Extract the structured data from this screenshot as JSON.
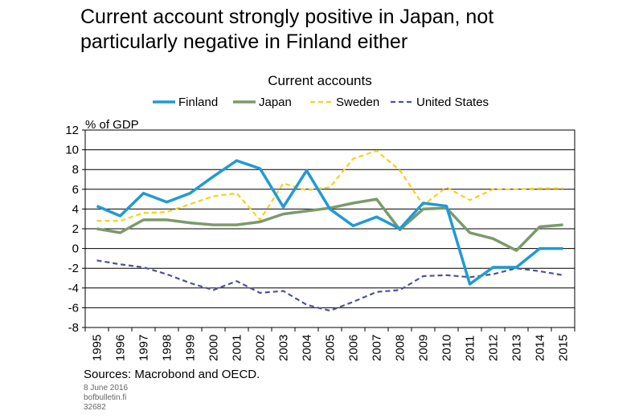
{
  "headline": {
    "line1": "Current account strongly positive in Japan, not",
    "line2": "particularly negative in Finland either"
  },
  "chart_data": {
    "type": "line",
    "title": "Current accounts",
    "ylabel": "% of GDP",
    "xlabel": "",
    "ylim": [
      -8,
      12
    ],
    "yticks": [
      12,
      10,
      8,
      6,
      4,
      2,
      0,
      -2,
      -4,
      -6,
      -8
    ],
    "ytick_labels": [
      "12",
      "10",
      "8",
      "6",
      "4",
      "2",
      "0",
      "-2",
      "-4",
      "-6",
      "-8"
    ],
    "grid": true,
    "legend_position": "top",
    "x": [
      "1995",
      "1996",
      "1997",
      "1998",
      "1999",
      "2000",
      "2001",
      "2002",
      "2003",
      "2004",
      "2005",
      "2006",
      "2007",
      "2008",
      "2009",
      "2010",
      "2011",
      "2012",
      "2013",
      "2014",
      "2015"
    ],
    "series": [
      {
        "name": "Finland",
        "color": "#1f9ad6",
        "style": "solid",
        "values": [
          4.3,
          3.3,
          5.6,
          4.7,
          5.6,
          7.3,
          8.9,
          8.1,
          4.2,
          7.9,
          4.0,
          2.3,
          3.2,
          2.0,
          4.6,
          4.3,
          -3.6,
          -1.9,
          -1.9,
          0.0,
          0.0
        ]
      },
      {
        "name": "Japan",
        "color": "#7a9b6a",
        "style": "solid",
        "values": [
          2.0,
          1.6,
          2.9,
          2.9,
          2.6,
          2.4,
          2.4,
          2.7,
          3.5,
          3.8,
          4.1,
          4.6,
          5.0,
          1.9,
          4.0,
          4.1,
          1.6,
          1.0,
          -0.2,
          2.2,
          2.4
        ]
      },
      {
        "name": "Sweden",
        "color": "#f7d117",
        "style": "dashed",
        "values": [
          2.8,
          2.8,
          3.6,
          3.7,
          4.5,
          5.3,
          5.6,
          2.9,
          6.6,
          5.9,
          6.2,
          9.1,
          9.9,
          7.9,
          4.4,
          6.2,
          4.9,
          6.0,
          6.0,
          6.1,
          6.1
        ]
      },
      {
        "name": "United States",
        "color": "#4d519b",
        "style": "dashed",
        "values": [
          -1.2,
          -1.6,
          -1.9,
          -2.6,
          -3.5,
          -4.2,
          -3.3,
          -4.5,
          -4.3,
          -5.7,
          -6.3,
          -5.4,
          -4.4,
          -4.2,
          -2.8,
          -2.7,
          -2.9,
          -2.6,
          -2.0,
          -2.3,
          -2.7
        ]
      }
    ]
  },
  "footer": {
    "sources": "Sources: Macrobond and OECD.",
    "date": "8 June 2016",
    "site": "bofbulletin.fi",
    "code": "32682"
  }
}
